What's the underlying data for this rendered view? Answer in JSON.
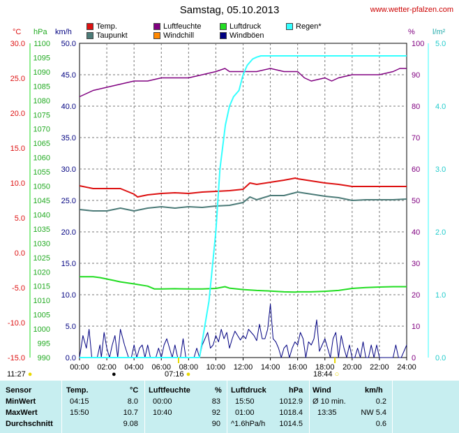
{
  "header": {
    "title": "Samstag, 05.10.2013",
    "site": "www.wetter-pfalzen.com"
  },
  "legend": [
    {
      "label": "Temp.",
      "color": "#dd1111"
    },
    {
      "label": "Luftfeuchte",
      "color": "#800080"
    },
    {
      "label": "Luftdruck",
      "color": "#22dd22"
    },
    {
      "label": "Regen*",
      "color": "#33ffff"
    },
    {
      "label": "Taupunkt",
      "color": "#4c7b78"
    },
    {
      "label": "Windchill",
      "color": "#ff8800"
    },
    {
      "label": "Windböen",
      "color": "#000080"
    }
  ],
  "units": {
    "celsius": "°C",
    "hpa": "hPa",
    "kmh": "km/h",
    "percent": "%",
    "lm2": "l/m²"
  },
  "sun": {
    "sunrise": "07:16",
    "sunset": "18:44",
    "daylength": "11:27"
  },
  "chart_data": {
    "type": "line",
    "x_unit": "hours",
    "xlim": [
      0,
      24
    ],
    "x_ticks": [
      "00:00",
      "02:00",
      "04:00",
      "06:00",
      "08:00",
      "10:00",
      "12:00",
      "14:00",
      "16:00",
      "18:00",
      "20:00",
      "22:00",
      "24:00"
    ],
    "axes": {
      "temp_c": {
        "ylim": [
          -15,
          30
        ],
        "ticks": [
          "30.0",
          "25.0",
          "20.0",
          "15.0",
          "10.0",
          "5.0",
          "0.0",
          "-5.0",
          "-10.0",
          "-15.0"
        ],
        "color": "#dd1111"
      },
      "pressure_hpa": {
        "ylim": [
          990,
          1100
        ],
        "ticks": [
          "1100",
          "1095",
          "1090",
          "1085",
          "1080",
          "1075",
          "1070",
          "1065",
          "1060",
          "1055",
          "1050",
          "1045",
          "1040",
          "1035",
          "1030",
          "1025",
          "1020",
          "1015",
          "1010",
          "1005",
          "1000",
          "995",
          "990"
        ],
        "color": "#22dd22"
      },
      "wind_kmh": {
        "ylim": [
          0,
          50
        ],
        "ticks": [
          "50.0",
          "45.0",
          "40.0",
          "35.0",
          "30.0",
          "25.0",
          "20.0",
          "15.0",
          "10.0",
          "5.0",
          "0.0"
        ],
        "color": "#000080"
      },
      "humidity_pct": {
        "ylim": [
          0,
          100
        ],
        "ticks": [
          "100",
          "90",
          "80",
          "70",
          "60",
          "50",
          "40",
          "30",
          "20",
          "10",
          "0"
        ],
        "color": "#800080"
      },
      "rain_lm2": {
        "ylim": [
          0,
          5
        ],
        "ticks": [
          "5.0",
          "4.0",
          "3.0",
          "2.0",
          "1.0",
          "0.0"
        ],
        "color": "#33ffff"
      }
    },
    "series": [
      {
        "name": "Temp.",
        "axis": "temp_c",
        "color": "#dd1111",
        "x": [
          0,
          1,
          2,
          3,
          4,
          4.25,
          5,
          6,
          7,
          8,
          9,
          10,
          11,
          12,
          12.5,
          13,
          14,
          15,
          15.83,
          16,
          17,
          18,
          19,
          20,
          21,
          22,
          23,
          24
        ],
        "y": [
          9.6,
          9.2,
          9.2,
          9.2,
          8.4,
          8.0,
          8.3,
          8.5,
          8.6,
          8.5,
          8.7,
          8.8,
          8.9,
          9.1,
          10.0,
          9.8,
          10.1,
          10.4,
          10.7,
          10.6,
          10.3,
          10.0,
          9.8,
          9.5,
          9.5,
          9.5,
          9.5,
          9.5
        ]
      },
      {
        "name": "Taupunkt",
        "axis": "temp_c",
        "color": "#4c7b78",
        "x": [
          0,
          1,
          2,
          3,
          4,
          5,
          6,
          7,
          8,
          9,
          10,
          11,
          12,
          12.5,
          13,
          14,
          15,
          16,
          17,
          18,
          19,
          20,
          21,
          22,
          23,
          24
        ],
        "y": [
          6.2,
          6.0,
          6.0,
          6.4,
          6.0,
          6.4,
          6.6,
          6.4,
          6.6,
          6.5,
          6.7,
          6.8,
          7.2,
          8.0,
          7.6,
          8.2,
          8.2,
          8.7,
          8.4,
          8.1,
          7.9,
          7.5,
          7.6,
          7.6,
          7.6,
          7.7
        ]
      },
      {
        "name": "Luftdruck",
        "axis": "pressure_hpa",
        "color": "#22dd22",
        "x": [
          0,
          1,
          1.5,
          2,
          2.5,
          3,
          4,
          5,
          5.5,
          6,
          7,
          8,
          9,
          10,
          10.67,
          11,
          12,
          13,
          14,
          15,
          15.83,
          16,
          17,
          18,
          19,
          20,
          21,
          22,
          23,
          24
        ],
        "y": [
          1018.3,
          1018.3,
          1018.0,
          1017.5,
          1017.0,
          1016.5,
          1015.8,
          1015.0,
          1014.0,
          1014.0,
          1014.1,
          1014.0,
          1014.0,
          1014.2,
          1014.8,
          1014.3,
          1013.8,
          1013.5,
          1013.3,
          1013.0,
          1012.9,
          1013.0,
          1013.0,
          1013.2,
          1013.5,
          1014.2,
          1014.5,
          1014.7,
          1014.8,
          1014.8
        ]
      },
      {
        "name": "Luftfeuchte",
        "axis": "humidity_pct",
        "color": "#800080",
        "x": [
          0,
          0.5,
          1,
          2,
          3,
          4,
          5,
          6,
          7,
          8,
          9,
          10,
          10.67,
          11,
          12,
          13,
          14,
          15,
          16,
          16.5,
          17,
          18,
          18.5,
          19,
          20,
          21,
          22,
          23,
          23.5,
          24
        ],
        "y": [
          83,
          84,
          85,
          86,
          87,
          88,
          88,
          89,
          89,
          89,
          90,
          91,
          92,
          91,
          91,
          91,
          92,
          91,
          91,
          89,
          88,
          89,
          88,
          89,
          90,
          90,
          90,
          91,
          92,
          92
        ]
      },
      {
        "name": "Regen*",
        "axis": "rain_lm2",
        "color": "#33ffff",
        "x": [
          0,
          8.8,
          9.5,
          10,
          10.3,
          10.7,
          11,
          11.3,
          11.7,
          12,
          12.3,
          12.7,
          13,
          13.3,
          14,
          24
        ],
        "y": [
          0,
          0,
          0.9,
          2.0,
          3.0,
          3.7,
          4.0,
          4.15,
          4.25,
          4.5,
          4.65,
          4.75,
          4.78,
          4.8,
          4.8,
          4.8
        ]
      },
      {
        "name": "Windböen",
        "axis": "wind_kmh",
        "color": "#000080",
        "x": [
          0,
          0.25,
          0.5,
          0.7,
          0.9,
          1.3,
          1.5,
          1.6,
          1.8,
          2.0,
          2.2,
          2.4,
          2.6,
          2.8,
          3.0,
          3.3,
          3.6,
          3.8,
          4.0,
          4.2,
          4.4,
          4.6,
          4.8,
          5.0,
          5.2,
          5.4,
          5.6,
          5.8,
          6.0,
          6.2,
          6.4,
          6.6,
          6.8,
          7.0,
          7.2,
          7.4,
          7.6,
          7.8,
          8.0,
          8.4,
          8.6,
          8.8,
          9.0,
          9.2,
          9.4,
          9.6,
          9.8,
          10.0,
          10.2,
          10.4,
          10.6,
          10.8,
          11.0,
          11.2,
          11.4,
          11.6,
          11.8,
          12.0,
          12.2,
          12.4,
          12.6,
          12.8,
          13.0,
          13.2,
          13.4,
          13.6,
          13.8,
          14.0,
          14.2,
          14.4,
          14.6,
          14.8,
          15.0,
          15.2,
          15.4,
          15.6,
          15.8,
          16.0,
          16.2,
          16.4,
          16.6,
          16.8,
          17.0,
          17.2,
          17.4,
          17.6,
          17.8,
          18.0,
          18.2,
          18.4,
          18.6,
          18.8,
          19.0,
          19.2,
          19.4,
          19.6,
          19.8,
          20.0,
          20.2,
          20.4,
          20.6,
          20.8,
          21.0,
          21.2,
          21.4,
          21.6,
          21.8,
          22.0,
          22.2,
          22.4,
          22.6,
          22.8,
          23.0,
          23.2,
          23.4,
          23.6,
          23.8,
          24.0
        ],
        "y": [
          0,
          3.5,
          1.5,
          4.5,
          0,
          0,
          2,
          0,
          4,
          1.5,
          0,
          2,
          3.5,
          0,
          4.5,
          2,
          0,
          0,
          2,
          0,
          1.5,
          2,
          0,
          2,
          0,
          0,
          0,
          1.5,
          0,
          2,
          3,
          1.5,
          0,
          2,
          0,
          0,
          3,
          0,
          0,
          0,
          1.5,
          0,
          2,
          3,
          4,
          1.5,
          2,
          3.5,
          2.5,
          4.5,
          3,
          4,
          1.5,
          3,
          4.2,
          3.5,
          2.8,
          3.5,
          3,
          4.5,
          4,
          3.5,
          2.7,
          5.3,
          3,
          3,
          4.5,
          8.5,
          3,
          2.5,
          1.5,
          0,
          1.5,
          2,
          0,
          1.5,
          2.5,
          2,
          4,
          3,
          0,
          2.5,
          2,
          3,
          6,
          1,
          2,
          3,
          1.5,
          0,
          3,
          4,
          0,
          3.5,
          1.5,
          0,
          2,
          0,
          0,
          1.5,
          0,
          2.5,
          0,
          0,
          2,
          0,
          2,
          0,
          0,
          0,
          0,
          0,
          0,
          2,
          0,
          0,
          1,
          2
        ]
      }
    ]
  },
  "stats": {
    "headers": {
      "sensor": "Sensor",
      "temp": "Temp.",
      "temp_unit": "°C",
      "hum": "Luftfeuchte",
      "hum_unit": "%",
      "press": "Luftdruck",
      "press_unit": "hPa",
      "wind": "Wind",
      "wind_unit": "km/h"
    },
    "rows": [
      {
        "label": "MinWert",
        "temp_time": "04:15",
        "temp_val": "8.0",
        "hum_time": "00:00",
        "hum_val": "83",
        "press_time": "15:50",
        "press_val": "1012.9",
        "wind_time": "Ø 10 min.",
        "wind_val": "0.2"
      },
      {
        "label": "MaxWert",
        "temp_time": "15:50",
        "temp_val": "10.7",
        "hum_time": "10:40",
        "hum_val": "92",
        "press_time": "01:00",
        "press_val": "1018.4",
        "wind_time": "13:35",
        "wind_val": "NW 5.4"
      },
      {
        "label": "Durchschnitt",
        "temp_time": "",
        "temp_val": "9.08",
        "hum_time": "",
        "hum_val": "90",
        "press_time": "^1.6hPa/h",
        "press_val": "1014.5",
        "wind_time": "",
        "wind_val": "0.6"
      }
    ]
  }
}
